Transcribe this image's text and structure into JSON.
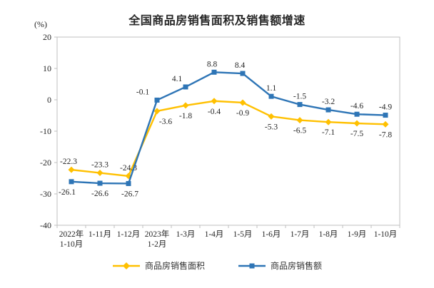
{
  "title": "全国商品房销售面积及销售额增速",
  "unit_label": "(%)",
  "colors": {
    "sales_area": "#FFC000",
    "sales_amount": "#2E75B6",
    "axis": "#BFBFBF",
    "text": "#262626"
  },
  "chart_data": {
    "type": "line",
    "title": "全国商品房销售面积及销售额增速",
    "unit": "(%)",
    "categories": [
      [
        "2022年",
        "1-10月"
      ],
      [
        "1-11月"
      ],
      [
        "1-12月"
      ],
      [
        "2023年",
        "1-2月"
      ],
      [
        "1-3月"
      ],
      [
        "1-4月"
      ],
      [
        "1-5月"
      ],
      [
        "1-6月"
      ],
      [
        "1-7月"
      ],
      [
        "1-8月"
      ],
      [
        "1-9月"
      ],
      [
        "1-10月"
      ]
    ],
    "series": [
      {
        "id": "sales-area",
        "name": "商品房销售面积",
        "color": "#FFC000",
        "marker": "diamond",
        "values": [
          -22.3,
          -23.3,
          -24.3,
          -3.6,
          -1.8,
          -0.4,
          -0.9,
          -5.3,
          -6.5,
          -7.1,
          -7.5,
          -7.8
        ],
        "label_side": [
          "above",
          "above",
          "above",
          "below",
          "below",
          "below",
          "below",
          "below",
          "below",
          "below",
          "below",
          "below"
        ],
        "label_dx": [
          -4,
          0,
          0,
          12,
          0,
          0,
          0,
          0,
          0,
          0,
          0,
          0
        ]
      },
      {
        "id": "sales-amount",
        "name": "商品房销售额",
        "color": "#2E75B6",
        "marker": "square",
        "values": [
          -26.1,
          -26.6,
          -26.7,
          -0.1,
          4.1,
          8.8,
          8.4,
          1.1,
          -1.5,
          -3.2,
          -4.6,
          -4.9
        ],
        "label_side": [
          "below",
          "below",
          "below",
          "above",
          "above",
          "above",
          "above",
          "above",
          "above",
          "above",
          "above",
          "above"
        ],
        "label_dx": [
          -6,
          0,
          2,
          -20,
          -12,
          -3,
          -4,
          0,
          0,
          0,
          0,
          0
        ]
      }
    ],
    "ylim": [
      -40,
      20
    ],
    "yticks": [
      20,
      10,
      0,
      -10,
      -20,
      -30,
      -40
    ],
    "grid": false,
    "legend_position": "bottom"
  },
  "legend": {
    "items": [
      {
        "label": "商品房销售面积"
      },
      {
        "label": "商品房销售额"
      }
    ]
  }
}
